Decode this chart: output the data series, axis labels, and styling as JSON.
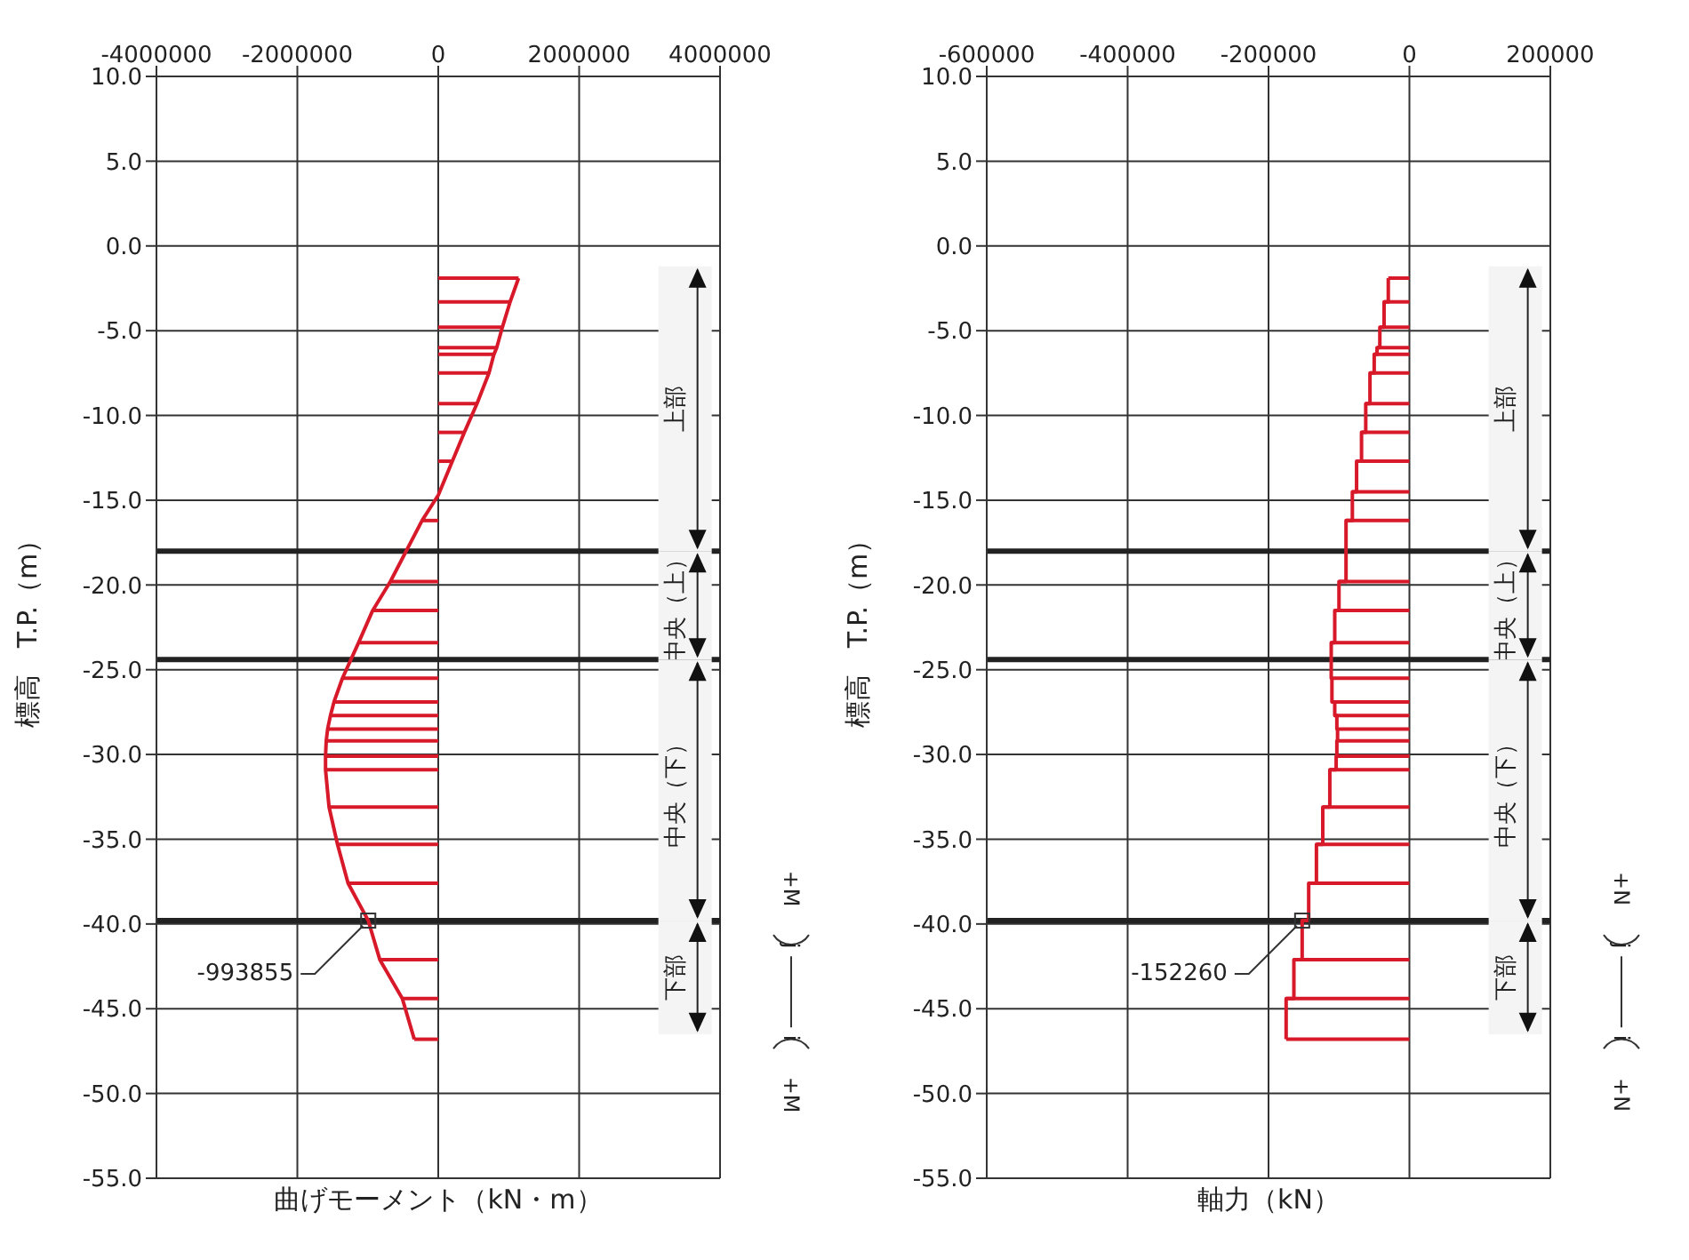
{
  "chart_data": [
    {
      "type": "line",
      "xlabel": "曲げモーメント（kN・m）",
      "ylabel": "標高　T.P.（m）",
      "xlim": [
        -4000000,
        4000000
      ],
      "xticks": [
        -4000000,
        -2000000,
        0,
        2000000,
        4000000
      ],
      "ylim": [
        -55,
        10
      ],
      "yticks": [
        {
          "value": 10,
          "label": "10.0"
        },
        {
          "value": 5,
          "label": "5.0"
        },
        {
          "value": 0,
          "label": "0.0"
        },
        {
          "value": -5,
          "label": "-5.0"
        },
        {
          "value": -10,
          "label": "-10.0"
        },
        {
          "value": -15,
          "label": "-15.0"
        },
        {
          "value": -20,
          "label": "-20.0"
        },
        {
          "value": -25,
          "label": "-25.0"
        },
        {
          "value": -30,
          "label": "-30.0"
        },
        {
          "value": -35,
          "label": "-35.0"
        },
        {
          "value": -40,
          "label": "-40.0"
        },
        {
          "value": -45,
          "label": "-45.0"
        },
        {
          "value": -50,
          "label": "-50.0"
        },
        {
          "value": -55,
          "label": "-55.0"
        }
      ],
      "grid": true,
      "series": [
        {
          "color": "#d7192a",
          "x": [
            1140000,
            1020000,
            910000,
            830000,
            790000,
            720000,
            550000,
            370000,
            200000,
            0,
            -230000,
            -680000,
            -930000,
            -1130000,
            -1360000,
            -1480000,
            -1530000,
            -1570000,
            -1590000,
            -1600000,
            -1600000,
            -1550000,
            -1430000,
            -1280000,
            -993855,
            -830000,
            -510000,
            -340000
          ],
          "values": [
            -1.9,
            -3.3,
            -4.8,
            -6.0,
            -6.4,
            -7.5,
            -9.3,
            -11.0,
            -12.7,
            -14.7,
            -16.2,
            -19.8,
            -21.5,
            -23.4,
            -25.5,
            -26.9,
            -27.7,
            -28.5,
            -29.2,
            -30.1,
            -30.9,
            -33.1,
            -35.3,
            -37.6,
            -39.8,
            -42.1,
            -44.4,
            -46.8
          ]
        },
        {
          "color": "#d7192a",
          "x": [
            0,
            1140000
          ],
          "values": [
            -1.9,
            -1.9
          ]
        },
        {
          "color": "#d7192a",
          "x": [
            0,
            1020000
          ],
          "values": [
            -3.3,
            -3.3
          ]
        },
        {
          "color": "#d7192a",
          "x": [
            0,
            910000
          ],
          "values": [
            -4.8,
            -4.8
          ]
        },
        {
          "color": "#d7192a",
          "x": [
            0,
            830000
          ],
          "values": [
            -6.0,
            -6.0
          ]
        },
        {
          "color": "#d7192a",
          "x": [
            0,
            790000
          ],
          "values": [
            -6.4,
            -6.4
          ]
        },
        {
          "color": "#d7192a",
          "x": [
            0,
            720000
          ],
          "values": [
            -7.5,
            -7.5
          ]
        },
        {
          "color": "#d7192a",
          "x": [
            0,
            550000
          ],
          "values": [
            -9.3,
            -9.3
          ]
        },
        {
          "color": "#d7192a",
          "x": [
            0,
            370000
          ],
          "values": [
            -11.0,
            -11.0
          ]
        },
        {
          "color": "#d7192a",
          "x": [
            0,
            200000
          ],
          "values": [
            -12.7,
            -12.7
          ]
        },
        {
          "color": "#d7192a",
          "x": [
            0,
            -230000
          ],
          "values": [
            -16.2,
            -16.2
          ]
        },
        {
          "color": "#d7192a",
          "x": [
            0,
            -680000
          ],
          "values": [
            -19.8,
            -19.8
          ]
        },
        {
          "color": "#d7192a",
          "x": [
            0,
            -930000
          ],
          "values": [
            -21.5,
            -21.5
          ]
        },
        {
          "color": "#d7192a",
          "x": [
            0,
            -1130000
          ],
          "values": [
            -23.4,
            -23.4
          ]
        },
        {
          "color": "#d7192a",
          "x": [
            0,
            -1360000
          ],
          "values": [
            -25.5,
            -25.5
          ]
        },
        {
          "color": "#d7192a",
          "x": [
            0,
            -1480000
          ],
          "values": [
            -26.9,
            -26.9
          ]
        },
        {
          "color": "#d7192a",
          "x": [
            0,
            -1530000
          ],
          "values": [
            -27.7,
            -27.7
          ]
        },
        {
          "color": "#d7192a",
          "x": [
            0,
            -1570000
          ],
          "values": [
            -28.5,
            -28.5
          ]
        },
        {
          "color": "#d7192a",
          "x": [
            0,
            -1590000
          ],
          "values": [
            -29.2,
            -29.2
          ]
        },
        {
          "color": "#d7192a",
          "x": [
            0,
            -1600000
          ],
          "values": [
            -30.1,
            -30.1
          ]
        },
        {
          "color": "#d7192a",
          "x": [
            0,
            -1600000
          ],
          "values": [
            -30.9,
            -30.9
          ]
        },
        {
          "color": "#d7192a",
          "x": [
            0,
            -1550000
          ],
          "values": [
            -33.1,
            -33.1
          ]
        },
        {
          "color": "#d7192a",
          "x": [
            0,
            -1430000
          ],
          "values": [
            -35.3,
            -35.3
          ]
        },
        {
          "color": "#d7192a",
          "x": [
            0,
            -1280000
          ],
          "values": [
            -37.6,
            -37.6
          ]
        },
        {
          "color": "#d7192a",
          "x": [
            0,
            -830000
          ],
          "values": [
            -42.1,
            -42.1
          ]
        },
        {
          "color": "#d7192a",
          "x": [
            0,
            -510000
          ],
          "values": [
            -44.4,
            -44.4
          ]
        },
        {
          "color": "#d7192a",
          "x": [
            0,
            -340000
          ],
          "values": [
            -46.8,
            -46.8
          ]
        }
      ],
      "ref_lines": [
        {
          "axis": "y",
          "value": -18.0,
          "color": "#222222"
        },
        {
          "axis": "y",
          "value": -24.4,
          "color": "#222222"
        },
        {
          "axis": "y",
          "value": -39.8,
          "color": "#222222"
        }
      ],
      "bands": [
        {
          "axis": "y",
          "from": -1.2,
          "to": -18.0,
          "label": "上部",
          "color": "#f4f4f4"
        },
        {
          "axis": "y",
          "from": -18.0,
          "to": -24.4,
          "label": "中央（上）",
          "color": "#f4f4f4"
        },
        {
          "axis": "y",
          "from": -24.4,
          "to": -39.8,
          "label": "中央（下）",
          "color": "#f4f4f4"
        },
        {
          "axis": "y",
          "from": -39.8,
          "to": -46.5,
          "label": "下部",
          "color": "#f4f4f4"
        }
      ],
      "annotations": [
        {
          "text": "-993855",
          "x": -993855,
          "y": -39.8
        },
        "+M",
        "j",
        "i",
        "+M"
      ]
    },
    {
      "type": "line",
      "xlabel": "軸力（kN）",
      "ylabel": "標高　T.P.（m）",
      "xlim": [
        -600000,
        200000
      ],
      "xticks": [
        -600000,
        -400000,
        -200000,
        0,
        200000
      ],
      "ylim": [
        -55,
        10
      ],
      "yticks": [
        {
          "value": 10,
          "label": "10.0"
        },
        {
          "value": 5,
          "label": "5.0"
        },
        {
          "value": 0,
          "label": "0.0"
        },
        {
          "value": -5,
          "label": "-5.0"
        },
        {
          "value": -10,
          "label": "-10.0"
        },
        {
          "value": -15,
          "label": "-15.0"
        },
        {
          "value": -20,
          "label": "-20.0"
        },
        {
          "value": -25,
          "label": "-25.0"
        },
        {
          "value": -30,
          "label": "-30.0"
        },
        {
          "value": -35,
          "label": "-35.0"
        },
        {
          "value": -40,
          "label": "-40.0"
        },
        {
          "value": -45,
          "label": "-45.0"
        },
        {
          "value": -50,
          "label": "-50.0"
        },
        {
          "value": -55,
          "label": "-55.0"
        }
      ],
      "grid": true,
      "series": [
        {
          "color": "#d7192a",
          "x": [
            -30000,
            -30000,
            -36000,
            -36000,
            -42000,
            -42000,
            -46000,
            -46000,
            -50000,
            -50000,
            -56000,
            -56000,
            -62000,
            -62000,
            -68000,
            -68000,
            -75000,
            -75000,
            -81000,
            -81000,
            -90000,
            -90000,
            -100000,
            -100000,
            -106000,
            -106000,
            -111000,
            -111000,
            -110000,
            -110000,
            -106000,
            -106000,
            -103000,
            -103000,
            -102000,
            -102000,
            -103000,
            -103000,
            -104000,
            -104000,
            -113000,
            -113000,
            -123000,
            -123000,
            -132000,
            -132000,
            -143000,
            -143000,
            -152260,
            -152260,
            -164000,
            -164000,
            -175000,
            -175000
          ],
          "values": [
            -1.9,
            -3.3,
            -3.3,
            -4.8,
            -4.8,
            -6.0,
            -6.0,
            -6.4,
            -6.4,
            -7.5,
            -7.5,
            -9.3,
            -9.3,
            -11.0,
            -11.0,
            -12.7,
            -12.7,
            -14.5,
            -14.5,
            -16.2,
            -16.2,
            -19.8,
            -19.8,
            -21.5,
            -21.5,
            -23.4,
            -23.4,
            -25.5,
            -25.5,
            -26.9,
            -26.9,
            -27.7,
            -27.7,
            -28.5,
            -28.5,
            -29.2,
            -29.2,
            -30.1,
            -30.1,
            -30.9,
            -30.9,
            -33.1,
            -33.1,
            -35.3,
            -35.3,
            -37.6,
            -37.6,
            -39.8,
            -39.8,
            -42.1,
            -42.1,
            -44.4,
            -44.4,
            -46.8
          ]
        },
        {
          "color": "#d7192a",
          "x": [
            0,
            -30000
          ],
          "values": [
            -1.9,
            -1.9
          ]
        },
        {
          "color": "#d7192a",
          "x": [
            0,
            -36000
          ],
          "values": [
            -3.3,
            -3.3
          ]
        },
        {
          "color": "#d7192a",
          "x": [
            0,
            -42000
          ],
          "values": [
            -4.8,
            -4.8
          ]
        },
        {
          "color": "#d7192a",
          "x": [
            0,
            -46000
          ],
          "values": [
            -6.0,
            -6.0
          ]
        },
        {
          "color": "#d7192a",
          "x": [
            0,
            -50000
          ],
          "values": [
            -6.4,
            -6.4
          ]
        },
        {
          "color": "#d7192a",
          "x": [
            0,
            -56000
          ],
          "values": [
            -7.5,
            -7.5
          ]
        },
        {
          "color": "#d7192a",
          "x": [
            0,
            -62000
          ],
          "values": [
            -9.3,
            -9.3
          ]
        },
        {
          "color": "#d7192a",
          "x": [
            0,
            -68000
          ],
          "values": [
            -11.0,
            -11.0
          ]
        },
        {
          "color": "#d7192a",
          "x": [
            0,
            -75000
          ],
          "values": [
            -12.7,
            -12.7
          ]
        },
        {
          "color": "#d7192a",
          "x": [
            0,
            -81000
          ],
          "values": [
            -14.5,
            -14.5
          ]
        },
        {
          "color": "#d7192a",
          "x": [
            0,
            -90000
          ],
          "values": [
            -16.2,
            -16.2
          ]
        },
        {
          "color": "#d7192a",
          "x": [
            0,
            -100000
          ],
          "values": [
            -19.8,
            -19.8
          ]
        },
        {
          "color": "#d7192a",
          "x": [
            0,
            -106000
          ],
          "values": [
            -21.5,
            -21.5
          ]
        },
        {
          "color": "#d7192a",
          "x": [
            0,
            -111000
          ],
          "values": [
            -23.4,
            -23.4
          ]
        },
        {
          "color": "#d7192a",
          "x": [
            0,
            -111000
          ],
          "values": [
            -25.5,
            -25.5
          ]
        },
        {
          "color": "#d7192a",
          "x": [
            0,
            -110000
          ],
          "values": [
            -26.9,
            -26.9
          ]
        },
        {
          "color": "#d7192a",
          "x": [
            0,
            -106000
          ],
          "values": [
            -27.7,
            -27.7
          ]
        },
        {
          "color": "#d7192a",
          "x": [
            0,
            -103000
          ],
          "values": [
            -28.5,
            -28.5
          ]
        },
        {
          "color": "#d7192a",
          "x": [
            0,
            -103000
          ],
          "values": [
            -29.2,
            -29.2
          ]
        },
        {
          "color": "#d7192a",
          "x": [
            0,
            -104000
          ],
          "values": [
            -30.1,
            -30.1
          ]
        },
        {
          "color": "#d7192a",
          "x": [
            0,
            -113000
          ],
          "values": [
            -30.9,
            -30.9
          ]
        },
        {
          "color": "#d7192a",
          "x": [
            0,
            -123000
          ],
          "values": [
            -33.1,
            -33.1
          ]
        },
        {
          "color": "#d7192a",
          "x": [
            0,
            -132000
          ],
          "values": [
            -35.3,
            -35.3
          ]
        },
        {
          "color": "#d7192a",
          "x": [
            0,
            -143000
          ],
          "values": [
            -37.6,
            -37.6
          ]
        },
        {
          "color": "#d7192a",
          "x": [
            0,
            -164000
          ],
          "values": [
            -42.1,
            -42.1
          ]
        },
        {
          "color": "#d7192a",
          "x": [
            0,
            -175000
          ],
          "values": [
            -44.4,
            -44.4
          ]
        },
        {
          "color": "#d7192a",
          "x": [
            0,
            -175000
          ],
          "values": [
            -46.8,
            -46.8
          ]
        }
      ],
      "ref_lines": [
        {
          "axis": "y",
          "value": -18.0,
          "color": "#222222"
        },
        {
          "axis": "y",
          "value": -24.4,
          "color": "#222222"
        },
        {
          "axis": "y",
          "value": -39.8,
          "color": "#222222"
        }
      ],
      "bands": [
        {
          "axis": "y",
          "from": -1.2,
          "to": -18.0,
          "label": "上部",
          "color": "#f4f4f4"
        },
        {
          "axis": "y",
          "from": -18.0,
          "to": -24.4,
          "label": "中央（上）",
          "color": "#f4f4f4"
        },
        {
          "axis": "y",
          "from": -24.4,
          "to": -39.8,
          "label": "中央（下）",
          "color": "#f4f4f4"
        },
        {
          "axis": "y",
          "from": -39.8,
          "to": -46.5,
          "label": "下部",
          "color": "#f4f4f4"
        }
      ],
      "annotations": [
        {
          "text": "-152260",
          "x": -152260,
          "y": -39.8
        },
        "+N",
        "j",
        "i",
        "+N"
      ]
    }
  ]
}
